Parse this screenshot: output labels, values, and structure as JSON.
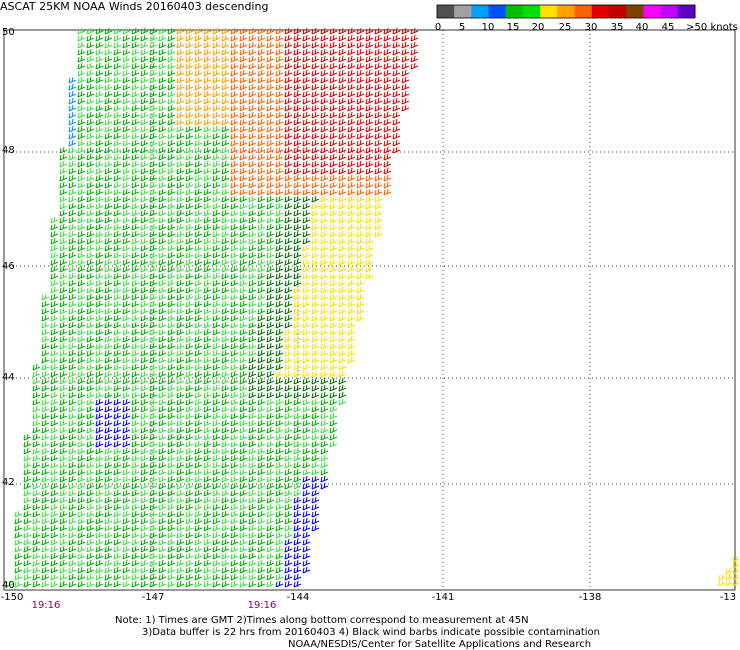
{
  "title": "ASCAT 25KM NOAA Winds 20160403 descending",
  "colorbar": {
    "unit_label": ">50 knots",
    "labels": [
      "0",
      "5",
      "10",
      "15",
      "20",
      "25",
      "30",
      "35",
      "40",
      "45"
    ],
    "colors": [
      "#505050",
      "#a0a0a0",
      "#00a0ff",
      "#0050ff",
      "#00c000",
      "#00e000",
      "#ffe000",
      "#ffa000",
      "#ff6000",
      "#e00000",
      "#c00000",
      "#804000",
      "#ff00ff",
      "#c000ff",
      "#6000c0"
    ]
  },
  "axes": {
    "lat_labels": [
      "50",
      "48",
      "46",
      "44",
      "42",
      "40"
    ],
    "lon_labels": [
      "-150",
      "-147",
      "-144",
      "-141",
      "-138",
      "-13"
    ],
    "time_labels": [
      "19:16",
      "19:16"
    ]
  },
  "notes": {
    "line1": "Note: 1) Times are GMT 2)Times along bottom correspond to measurement at 45N",
    "line2": "3)Data buffer is 22 hrs from 20160403 4) Black wind barbs indicate possible contamination",
    "line3": "NOAA/NESDIS/Center for Satellite Applications and Research"
  },
  "swath": {
    "wind_colors": {
      "blue": "#0000ff",
      "light_blue": "#0090ff",
      "green": "#00b000",
      "light_green": "#40e040",
      "dark_green": "#007000",
      "yellow": "#ffe000",
      "orange": "#ffa000",
      "dark_orange": "#ff6000",
      "red": "#e00000"
    }
  }
}
